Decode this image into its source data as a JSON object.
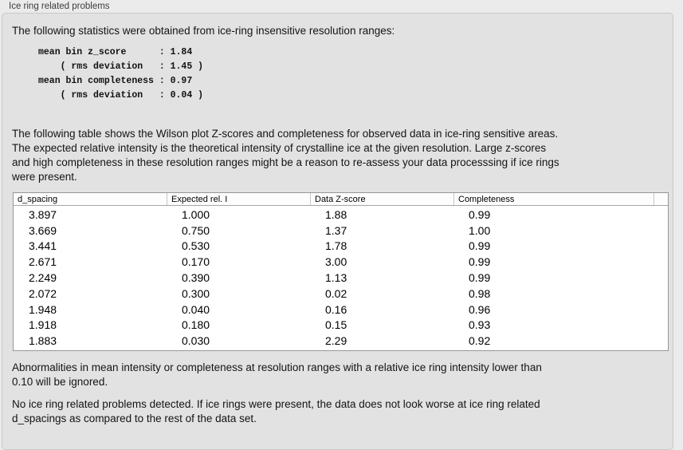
{
  "group": {
    "title": "Ice ring related problems"
  },
  "intro": "The following statistics were obtained from ice-ring insensitive resolution ranges:",
  "stats_block": "mean bin z_score      : 1.84\n    ( rms deviation   : 1.45 )\nmean bin completeness : 0.97\n    ( rms deviation   : 0.04 )",
  "stats": {
    "mean_bin_z_score": "1.84",
    "z_score_rms_deviation": "1.45",
    "mean_bin_completeness": "0.97",
    "completeness_rms_deviation": "0.04"
  },
  "description": "The following table shows the Wilson plot Z-scores and completeness for observed data in ice-ring sensitive areas.\nThe expected relative intensity is the theoretical intensity of crystalline ice at the given resolution. Large z-scores\nand high completeness in these resolution ranges might be a reason to re-assess your data processsing if ice rings\nwere present.",
  "table": {
    "columns": [
      "d_spacing",
      "Expected rel. I",
      "Data Z-score",
      "Completeness"
    ],
    "rows": [
      [
        "3.897",
        "1.000",
        "1.88",
        "0.99"
      ],
      [
        "3.669",
        "0.750",
        "1.37",
        "1.00"
      ],
      [
        "3.441",
        "0.530",
        "1.78",
        "0.99"
      ],
      [
        "2.671",
        "0.170",
        "3.00",
        "0.99"
      ],
      [
        "2.249",
        "0.390",
        "1.13",
        "0.99"
      ],
      [
        "2.072",
        "0.300",
        "0.02",
        "0.98"
      ],
      [
        "1.948",
        "0.040",
        "0.16",
        "0.96"
      ],
      [
        "1.918",
        "0.180",
        "0.15",
        "0.93"
      ],
      [
        "1.883",
        "0.030",
        "2.29",
        "0.92"
      ]
    ]
  },
  "note_ignore": "Abnormalities in mean intensity or completeness at resolution ranges with a relative ice ring intensity lower than\n0.10 will be ignored.",
  "conclusion": "No ice ring related problems detected. If ice rings were present, the data does not look worse at ice ring related\nd_spacings as compared to the rest of the data set.",
  "colors": {
    "page_background": "#ebebeb",
    "groupbox_background": "#e2e2e2",
    "groupbox_border": "#c9c9c9",
    "table_background": "#ffffff",
    "table_border": "#979797",
    "text": "#141414"
  }
}
